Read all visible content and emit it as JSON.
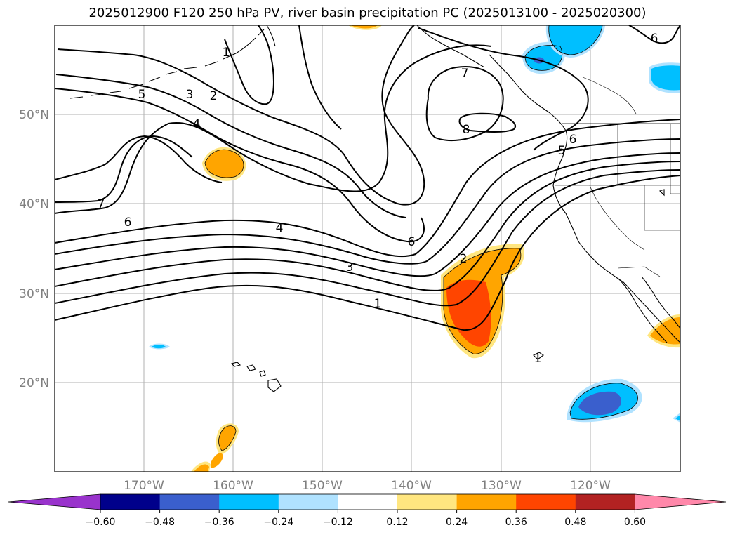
{
  "title": "2025012900 F120 250 hPa PV, river basin precipitation PC (2025013100 - 2025020300)",
  "map": {
    "lon_labels": [
      "170°W",
      "160°W",
      "150°W",
      "140°W",
      "130°W",
      "120°W"
    ],
    "lat_labels": [
      "50°N",
      "40°N",
      "30°N",
      "20°N"
    ],
    "contour_labels": [
      "1",
      "2",
      "3",
      "4",
      "5",
      "6",
      "7",
      "8"
    ]
  },
  "colorbar": {
    "tick_labels": [
      "−0.60",
      "−0.48",
      "−0.36",
      "−0.24",
      "−0.12",
      "0.12",
      "0.24",
      "0.36",
      "0.48",
      "0.60"
    ],
    "colors": [
      "#9933cc",
      "#00008b",
      "#3a5fcd",
      "#00bfff",
      "#b0e2ff",
      "#ffffff",
      "#ffe680",
      "#ffa500",
      "#ff4500",
      "#b22222",
      "#ff88aa"
    ]
  }
}
